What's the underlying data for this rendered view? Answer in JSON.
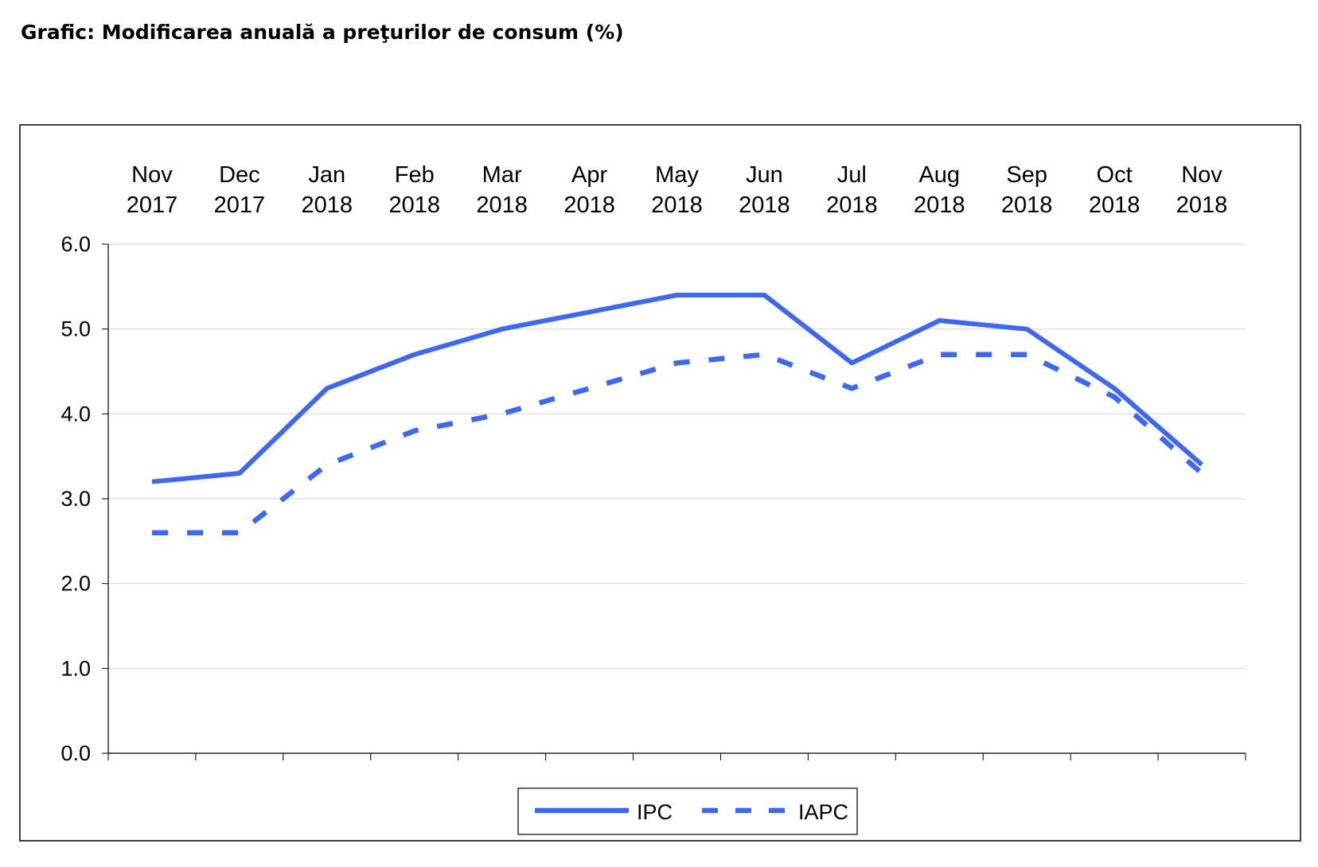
{
  "page": {
    "title": "Grafic: Modificarea anuală a preţurilor de consum (%)"
  },
  "colors": {
    "series": "#3d67f5",
    "grid": "#d9d9d9",
    "axis": "#000000",
    "frame": "#000000"
  },
  "chart_data": {
    "type": "line",
    "title": "",
    "xlabel": "",
    "ylabel": "",
    "x_axis_position": "top",
    "categories": [
      [
        "Nov",
        "2017"
      ],
      [
        "Dec",
        "2017"
      ],
      [
        "Jan",
        "2018"
      ],
      [
        "Feb",
        "2018"
      ],
      [
        "Mar",
        "2018"
      ],
      [
        "Apr",
        "2018"
      ],
      [
        "May",
        "2018"
      ],
      [
        "Jun",
        "2018"
      ],
      [
        "Jul",
        "2018"
      ],
      [
        "Aug",
        "2018"
      ],
      [
        "Sep",
        "2018"
      ],
      [
        "Oct",
        "2018"
      ],
      [
        "Nov",
        "2018"
      ]
    ],
    "yticks": [
      "0.0",
      "1.0",
      "2.0",
      "3.0",
      "4.0",
      "5.0",
      "6.0"
    ],
    "ylim": [
      0,
      6
    ],
    "grid": true,
    "legend_position": "bottom-center",
    "series": [
      {
        "name": "IPC",
        "style": "solid",
        "values": [
          3.2,
          3.3,
          4.3,
          4.7,
          5.0,
          5.2,
          5.4,
          5.4,
          4.6,
          5.1,
          5.0,
          4.3,
          3.4
        ]
      },
      {
        "name": "IAPC",
        "style": "dashed",
        "values": [
          2.6,
          2.6,
          3.4,
          3.8,
          4.0,
          4.3,
          4.6,
          4.7,
          4.3,
          4.7,
          4.7,
          4.2,
          3.3
        ]
      }
    ]
  }
}
